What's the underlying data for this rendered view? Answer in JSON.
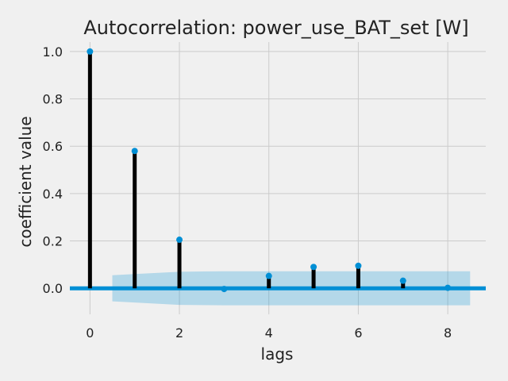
{
  "chart_data": {
    "type": "stem",
    "title": "Autocorrelation: power_use_BAT_set [W]",
    "xlabel": "lags",
    "ylabel": "coefficient value",
    "xlim": [
      -0.45,
      8.85
    ],
    "ylim": [
      -0.11,
      1.04
    ],
    "xticks": [
      0,
      2,
      4,
      6,
      8
    ],
    "xtick_labels": [
      "0",
      "2",
      "4",
      "6",
      "8"
    ],
    "yticks": [
      0.0,
      0.2,
      0.4,
      0.6,
      0.8,
      1.0
    ],
    "ytick_labels": [
      "0.0",
      "0.2",
      "0.4",
      "0.6",
      "0.8",
      "1.0"
    ],
    "grid": true,
    "lags": [
      0,
      1,
      2,
      3,
      4,
      5,
      6,
      7,
      8
    ],
    "values": [
      1.0,
      0.58,
      0.205,
      -0.003,
      0.052,
      0.09,
      0.095,
      0.032,
      0.002
    ],
    "confidence_band": {
      "x": [
        0.5,
        1,
        2,
        3,
        4,
        5,
        6,
        7,
        8,
        8.5
      ],
      "upper": [
        0.055,
        0.06,
        0.07,
        0.072,
        0.072,
        0.072,
        0.072,
        0.072,
        0.072,
        0.072
      ],
      "lower": [
        -0.055,
        -0.06,
        -0.07,
        -0.072,
        -0.072,
        -0.072,
        -0.072,
        -0.072,
        -0.072,
        -0.072
      ]
    },
    "colors": {
      "background": "#f0f0f0",
      "grid": "#cbcbcb",
      "stem": "#000000",
      "marker": "#008fd5",
      "zero_line": "#008fd5",
      "band": "#008fd5"
    }
  }
}
